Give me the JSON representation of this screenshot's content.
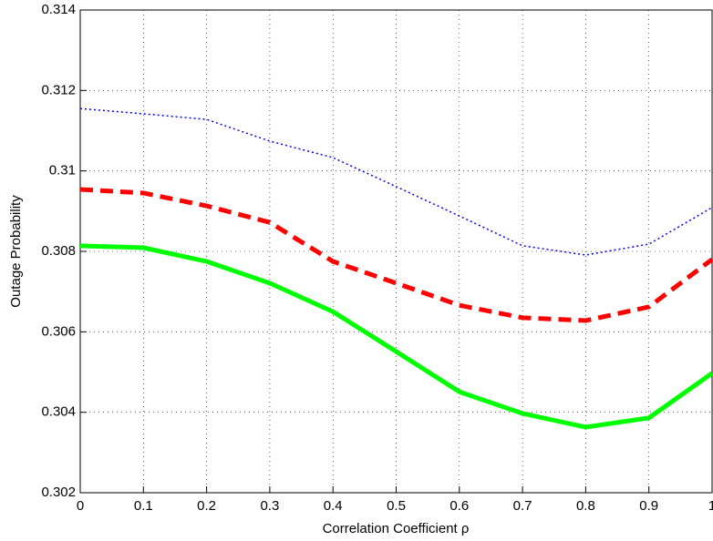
{
  "chart_data": {
    "type": "line",
    "x_label": "Correlation Coefficient ρ",
    "y_label": "Outage Probability",
    "x": [
      0,
      0.1,
      0.2,
      0.3,
      0.4,
      0.5,
      0.6,
      0.7,
      0.8,
      0.9,
      1
    ],
    "series": [
      {
        "color": "#0000ff",
        "linestyle": "dotted",
        "linewidth": 1.5,
        "values": [
          0.31155,
          0.31142,
          0.31128,
          0.31074,
          0.31033,
          0.30961,
          0.30888,
          0.30814,
          0.30791,
          0.30818,
          0.30909
        ]
      },
      {
        "color": "#ff0000",
        "linestyle": "dashed",
        "linewidth": 5,
        "values": [
          0.30954,
          0.30945,
          0.30913,
          0.30872,
          0.30775,
          0.30721,
          0.30666,
          0.30635,
          0.30628,
          0.30662,
          0.3078
        ]
      },
      {
        "color": "#00ff00",
        "linestyle": "solid",
        "linewidth": 5,
        "values": [
          0.30814,
          0.30809,
          0.30775,
          0.30721,
          0.3065,
          0.30551,
          0.30451,
          0.30397,
          0.30363,
          0.30386,
          0.30497
        ]
      }
    ],
    "xlim": [
      0,
      1
    ],
    "xticks": [
      0,
      0.1,
      0.2,
      0.3,
      0.4,
      0.5,
      0.6,
      0.7,
      0.8,
      0.9,
      1
    ],
    "ylim": [
      0.302,
      0.314
    ],
    "yticks": [
      0.302,
      0.304,
      0.306,
      0.308,
      0.31,
      0.312,
      0.314
    ],
    "grid": true
  }
}
